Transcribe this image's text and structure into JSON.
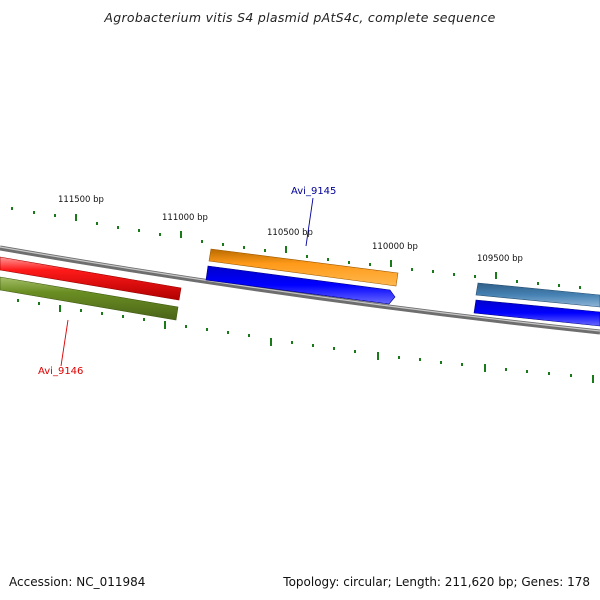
{
  "title": "Agrobacterium vitis S4 plasmid pAtS4c, complete sequence",
  "footer": {
    "accession": "Accession: NC_011984",
    "summary": "Topology: circular; Length: 211,620 bp; Genes: 178"
  },
  "ruler": {
    "labels": [
      "111500 bp",
      "111000 bp",
      "110500 bp",
      "110000 bp",
      "109500 bp"
    ]
  },
  "genes": [
    {
      "name": "Avi_9145",
      "color": "#000099"
    },
    {
      "name": "Avi_9146",
      "color": "#dd0000"
    }
  ],
  "colors": {
    "tick": "#1a7a1a",
    "backbone": "#808080",
    "red": "#ee0000",
    "olive": "#6b8e23",
    "orange": "#ff8c00",
    "blue": "#0000ee",
    "steelblue": "#4682b4"
  }
}
